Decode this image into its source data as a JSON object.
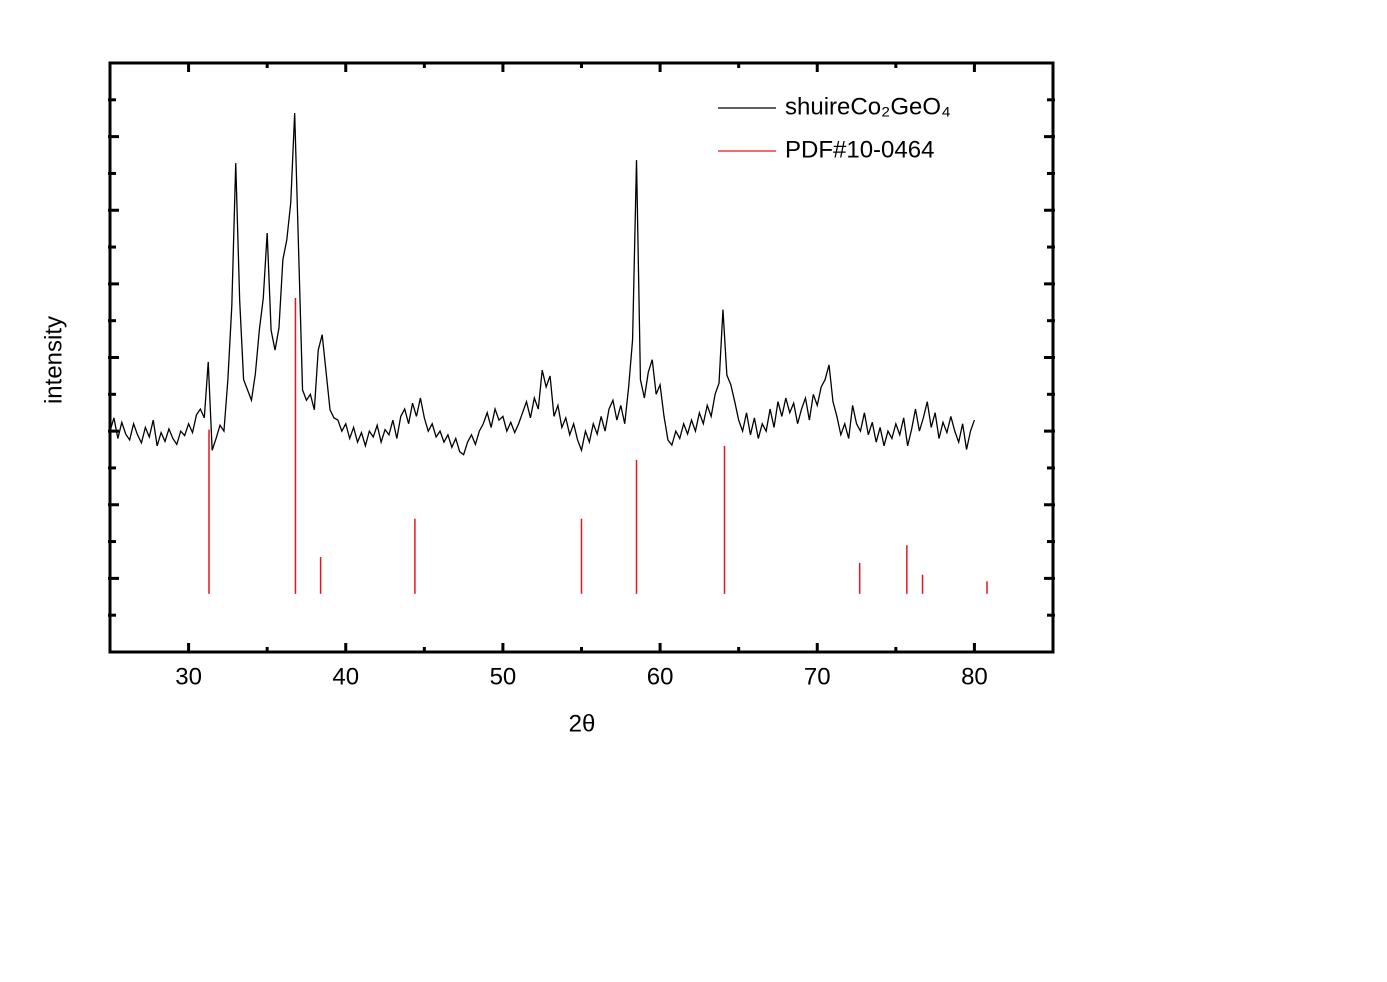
{
  "chart_data": {
    "type": "line",
    "x_label": "2θ",
    "y_label": "intensity",
    "xlim": [
      25,
      85
    ],
    "xticks": [
      30,
      40,
      50,
      60,
      70,
      80
    ],
    "ylim": [
      0,
      800
    ],
    "yticks": [
      100,
      200,
      300,
      400,
      500,
      600,
      700
    ],
    "show_ytick_labels": false,
    "legend": "top-right",
    "series": [
      {
        "name": "shuireCo₂GeO₄",
        "color": "#000000",
        "type": "line",
        "x": [
          25,
          25.25,
          25.5,
          25.75,
          26,
          26.25,
          26.5,
          26.75,
          27,
          27.25,
          27.5,
          27.75,
          28,
          28.25,
          28.5,
          28.75,
          29,
          29.25,
          29.5,
          29.75,
          30,
          30.25,
          30.5,
          30.75,
          31,
          31.25,
          31.5,
          31.75,
          32,
          32.25,
          32.5,
          32.75,
          33,
          33.25,
          33.5,
          33.75,
          34,
          34.25,
          34.5,
          34.75,
          35,
          35.25,
          35.5,
          35.75,
          36,
          36.25,
          36.5,
          36.75,
          37,
          37.25,
          37.5,
          37.75,
          38,
          38.25,
          38.5,
          38.75,
          39,
          39.25,
          39.5,
          39.75,
          40,
          40.25,
          40.5,
          40.75,
          41,
          41.25,
          41.5,
          41.75,
          42,
          42.25,
          42.5,
          42.75,
          43,
          43.25,
          43.5,
          43.75,
          44,
          44.25,
          44.5,
          44.75,
          45,
          45.25,
          45.5,
          45.75,
          46,
          46.25,
          46.5,
          46.75,
          47,
          47.25,
          47.5,
          47.75,
          48,
          48.25,
          48.5,
          48.75,
          49,
          49.25,
          49.5,
          49.75,
          50,
          50.25,
          50.5,
          50.75,
          51,
          51.25,
          51.5,
          51.75,
          52,
          52.25,
          52.5,
          52.75,
          53,
          53.25,
          53.5,
          53.75,
          54,
          54.25,
          54.5,
          54.75,
          55,
          55.25,
          55.5,
          55.75,
          56,
          56.25,
          56.5,
          56.75,
          57,
          57.25,
          57.5,
          57.75,
          58,
          58.25,
          58.5,
          58.75,
          59,
          59.25,
          59.5,
          59.75,
          60,
          60.25,
          60.5,
          60.75,
          61,
          61.25,
          61.5,
          61.75,
          62,
          62.25,
          62.5,
          62.75,
          63,
          63.25,
          63.5,
          63.75,
          64,
          64.25,
          64.5,
          64.75,
          65,
          65.25,
          65.5,
          65.75,
          66,
          66.25,
          66.5,
          66.75,
          67,
          67.25,
          67.5,
          67.75,
          68,
          68.25,
          68.5,
          68.75,
          69,
          69.25,
          69.5,
          69.75,
          70,
          70.25,
          70.5,
          70.75,
          71,
          71.25,
          71.5,
          71.75,
          72,
          72.25,
          72.5,
          72.75,
          73,
          73.25,
          73.5,
          73.75,
          74,
          74.25,
          74.5,
          74.75,
          75,
          75.25,
          75.5,
          75.75,
          76,
          76.25,
          76.5,
          76.75,
          77,
          77.25,
          77.5,
          77.75,
          78,
          78.25,
          78.5,
          78.75,
          79,
          79.25,
          79.5,
          79.75,
          80
        ],
        "values": [
          300,
          318,
          290,
          312,
          296,
          288,
          310,
          295,
          284,
          305,
          292,
          315,
          280,
          298,
          286,
          303,
          290,
          282,
          300,
          294,
          310,
          298,
          322,
          330,
          318,
          394,
          274,
          290,
          308,
          300,
          370,
          470,
          664,
          478,
          370,
          356,
          342,
          378,
          437,
          480,
          569,
          437,
          410,
          440,
          533,
          560,
          610,
          732,
          546,
          356,
          342,
          350,
          329,
          410,
          431,
          380,
          329,
          318,
          315,
          300,
          310,
          290,
          305,
          285,
          298,
          280,
          300,
          292,
          308,
          285,
          302,
          295,
          315,
          290,
          320,
          330,
          310,
          338,
          320,
          345,
          318,
          300,
          310,
          292,
          300,
          285,
          295,
          278,
          290,
          272,
          268,
          285,
          295,
          282,
          300,
          310,
          325,
          305,
          330,
          315,
          320,
          300,
          312,
          298,
          310,
          325,
          340,
          318,
          345,
          330,
          383,
          360,
          375,
          320,
          335,
          305,
          318,
          295,
          310,
          288,
          274,
          300,
          285,
          310,
          296,
          320,
          300,
          330,
          342,
          315,
          335,
          310,
          360,
          424,
          668,
          370,
          345,
          380,
          397,
          350,
          363,
          320,
          288,
          281,
          300,
          290,
          310,
          296,
          315,
          300,
          325,
          310,
          335,
          320,
          350,
          365,
          465,
          376,
          363,
          340,
          315,
          300,
          325,
          295,
          318,
          290,
          310,
          300,
          330,
          305,
          340,
          320,
          345,
          325,
          338,
          310,
          330,
          345,
          315,
          350,
          335,
          360,
          370,
          390,
          340,
          320,
          295,
          310,
          290,
          335,
          310,
          300,
          325,
          295,
          312,
          285,
          305,
          280,
          300,
          290,
          310,
          295,
          318,
          280,
          302,
          330,
          300,
          318,
          340,
          305,
          325,
          290,
          312,
          298,
          320,
          300,
          285,
          310,
          275,
          300,
          315
        ]
      },
      {
        "name": "PDF#10-0464",
        "color": "#e8141c",
        "type": "stick",
        "baseline": 79,
        "x": [
          31.3,
          36.8,
          38.4,
          44.4,
          55.0,
          58.5,
          64.1,
          72.7,
          75.7,
          76.7,
          80.8
        ],
        "values": [
          302,
          481,
          129,
          181,
          181,
          261,
          280,
          121,
          145,
          105,
          96
        ]
      }
    ]
  }
}
